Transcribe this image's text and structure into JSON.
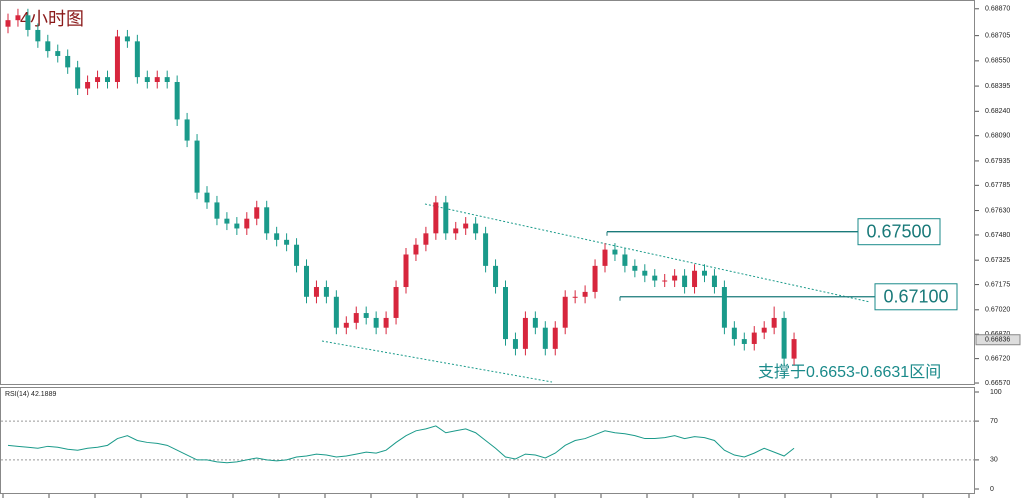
{
  "chart_data": {
    "type": "candlestick",
    "title": "4小时图",
    "candles": [
      [
        0.6876,
        0.6884,
        0.6872,
        0.688
      ],
      [
        0.688,
        0.6887,
        0.6876,
        0.6883
      ],
      [
        0.6883,
        0.6887,
        0.687,
        0.6874
      ],
      [
        0.6874,
        0.6878,
        0.6863,
        0.6867
      ],
      [
        0.6867,
        0.6871,
        0.6857,
        0.6861
      ],
      [
        0.6861,
        0.6865,
        0.6854,
        0.6858
      ],
      [
        0.6858,
        0.6862,
        0.6847,
        0.6851
      ],
      [
        0.6851,
        0.6855,
        0.6834,
        0.6838
      ],
      [
        0.6838,
        0.6846,
        0.6834,
        0.6842
      ],
      [
        0.6842,
        0.6849,
        0.6838,
        0.6845
      ],
      [
        0.6845,
        0.6849,
        0.6838,
        0.6842
      ],
      [
        0.6842,
        0.6874,
        0.6838,
        0.687
      ],
      [
        0.687,
        0.6874,
        0.6863,
        0.6867
      ],
      [
        0.6867,
        0.6871,
        0.6841,
        0.6845
      ],
      [
        0.6845,
        0.6849,
        0.6838,
        0.6842
      ],
      [
        0.6842,
        0.6849,
        0.6838,
        0.6845
      ],
      [
        0.6845,
        0.6849,
        0.6838,
        0.6842
      ],
      [
        0.6842,
        0.6846,
        0.6815,
        0.6819
      ],
      [
        0.6819,
        0.6823,
        0.6802,
        0.6806
      ],
      [
        0.6806,
        0.681,
        0.677,
        0.6774
      ],
      [
        0.6774,
        0.6778,
        0.6764,
        0.6768
      ],
      [
        0.6768,
        0.6772,
        0.6754,
        0.6758
      ],
      [
        0.6758,
        0.6762,
        0.6751,
        0.6755
      ],
      [
        0.6755,
        0.6759,
        0.6748,
        0.6752
      ],
      [
        0.6752,
        0.6762,
        0.6748,
        0.6758
      ],
      [
        0.6758,
        0.6769,
        0.6754,
        0.6765
      ],
      [
        0.6765,
        0.6769,
        0.6745,
        0.6749
      ],
      [
        0.6749,
        0.6753,
        0.6741,
        0.6745
      ],
      [
        0.6745,
        0.6749,
        0.6738,
        0.6742
      ],
      [
        0.6742,
        0.6746,
        0.6725,
        0.6729
      ],
      [
        0.6729,
        0.6733,
        0.6706,
        0.671
      ],
      [
        0.671,
        0.672,
        0.6706,
        0.6716
      ],
      [
        0.6716,
        0.672,
        0.6706,
        0.671
      ],
      [
        0.671,
        0.6714,
        0.6687,
        0.6691
      ],
      [
        0.6691,
        0.6698,
        0.6687,
        0.6694
      ],
      [
        0.6694,
        0.6704,
        0.669,
        0.67
      ],
      [
        0.67,
        0.6704,
        0.6693,
        0.6697
      ],
      [
        0.6697,
        0.6701,
        0.6687,
        0.6691
      ],
      [
        0.6691,
        0.6701,
        0.6687,
        0.6697
      ],
      [
        0.6697,
        0.672,
        0.6693,
        0.6716
      ],
      [
        0.6716,
        0.674,
        0.6712,
        0.6736
      ],
      [
        0.6736,
        0.6746,
        0.6732,
        0.6742
      ],
      [
        0.6742,
        0.6753,
        0.6738,
        0.6749
      ],
      [
        0.6749,
        0.6772,
        0.6745,
        0.6768
      ],
      [
        0.6768,
        0.6772,
        0.6745,
        0.6749
      ],
      [
        0.6749,
        0.6756,
        0.6745,
        0.6752
      ],
      [
        0.6752,
        0.6759,
        0.6748,
        0.6755
      ],
      [
        0.6755,
        0.6759,
        0.6745,
        0.6749
      ],
      [
        0.6749,
        0.6753,
        0.6725,
        0.6729
      ],
      [
        0.6729,
        0.6733,
        0.6712,
        0.6716
      ],
      [
        0.6716,
        0.672,
        0.668,
        0.6684
      ],
      [
        0.6684,
        0.6688,
        0.6674,
        0.6678
      ],
      [
        0.6678,
        0.6701,
        0.6674,
        0.6697
      ],
      [
        0.6697,
        0.6701,
        0.6687,
        0.6691
      ],
      [
        0.6691,
        0.6695,
        0.6674,
        0.6678
      ],
      [
        0.6678,
        0.6695,
        0.6674,
        0.6691
      ],
      [
        0.6691,
        0.6714,
        0.6687,
        0.671
      ],
      [
        0.671,
        0.6714,
        0.6706,
        0.671
      ],
      [
        0.671,
        0.6717,
        0.6706,
        0.6713
      ],
      [
        0.6713,
        0.6733,
        0.6709,
        0.6729
      ],
      [
        0.6729,
        0.6743,
        0.6725,
        0.6739
      ],
      [
        0.6739,
        0.6743,
        0.6732,
        0.6736
      ],
      [
        0.6736,
        0.674,
        0.6725,
        0.6729
      ],
      [
        0.6729,
        0.6733,
        0.6722,
        0.6726
      ],
      [
        0.6726,
        0.673,
        0.6719,
        0.6723
      ],
      [
        0.6723,
        0.6727,
        0.6716,
        0.672
      ],
      [
        0.672,
        0.6724,
        0.6716,
        0.672
      ],
      [
        0.672,
        0.6727,
        0.6716,
        0.6723
      ],
      [
        0.6723,
        0.6727,
        0.6712,
        0.6716
      ],
      [
        0.6716,
        0.673,
        0.6712,
        0.6726
      ],
      [
        0.6726,
        0.673,
        0.6719,
        0.6723
      ],
      [
        0.6723,
        0.6727,
        0.6712,
        0.6716
      ],
      [
        0.6716,
        0.672,
        0.6687,
        0.6691
      ],
      [
        0.6691,
        0.6695,
        0.668,
        0.6684
      ],
      [
        0.6684,
        0.6688,
        0.6677,
        0.6681
      ],
      [
        0.6681,
        0.6692,
        0.6677,
        0.6688
      ],
      [
        0.6688,
        0.6695,
        0.6684,
        0.6691
      ],
      [
        0.6691,
        0.6704,
        0.6687,
        0.6697
      ],
      [
        0.6697,
        0.6701,
        0.6668,
        0.6672
      ],
      [
        0.6672,
        0.6688,
        0.6668,
        0.6684
      ]
    ],
    "up_color": "#d7263d",
    "down_color": "#1a9a8a",
    "ylim": [
      0.66564,
      0.68924
    ],
    "yticks": [
      {
        "value": 0.6657,
        "label": "0.66570"
      },
      {
        "value": 0.6672,
        "label": "0.66720"
      },
      {
        "value": 0.6687,
        "label": "0.66870"
      },
      {
        "value": 0.6702,
        "label": "0.67020"
      },
      {
        "value": 0.67175,
        "label": "0.67175"
      },
      {
        "value": 0.67325,
        "label": "0.67325"
      },
      {
        "value": 0.6748,
        "label": "0.67480"
      },
      {
        "value": 0.6763,
        "label": "0.67630"
      },
      {
        "value": 0.67785,
        "label": "0.67785"
      },
      {
        "value": 0.67935,
        "label": "0.67935"
      },
      {
        "value": 0.6809,
        "label": "0.68090"
      },
      {
        "value": 0.6824,
        "label": "0.68240"
      },
      {
        "value": 0.68395,
        "label": "0.68395"
      },
      {
        "value": 0.6855,
        "label": "0.68550"
      },
      {
        "value": 0.68705,
        "label": "0.68705"
      },
      {
        "value": 0.6887,
        "label": "0.68870"
      }
    ],
    "last_price": {
      "value": 0.66836,
      "label": "0.66836"
    },
    "levels": [
      {
        "value": 0.675,
        "label": "0.67500"
      },
      {
        "value": 0.671,
        "label": "0.67100"
      }
    ],
    "annotation": "支撑于0.6653-0.6631区间",
    "rsi": {
      "label": "RSI(14) 42.1889",
      "color": "#1a9a8a",
      "ylim": [
        0,
        100
      ],
      "yticks": [
        0,
        30,
        70,
        100
      ],
      "levels": [
        30,
        70
      ],
      "values": [
        45,
        44,
        43,
        42,
        44,
        43,
        41,
        40,
        42,
        43,
        45,
        52,
        55,
        50,
        48,
        47,
        45,
        40,
        35,
        30,
        30,
        28,
        27,
        28,
        30,
        32,
        30,
        29,
        30,
        33,
        34,
        36,
        35,
        33,
        34,
        36,
        38,
        37,
        40,
        48,
        55,
        60,
        62,
        65,
        58,
        60,
        62,
        58,
        50,
        42,
        33,
        31,
        36,
        35,
        32,
        37,
        45,
        50,
        52,
        56,
        60,
        58,
        57,
        55,
        52,
        52,
        53,
        55,
        52,
        54,
        53,
        50,
        40,
        35,
        33,
        37,
        42,
        38,
        34,
        42
      ]
    }
  }
}
